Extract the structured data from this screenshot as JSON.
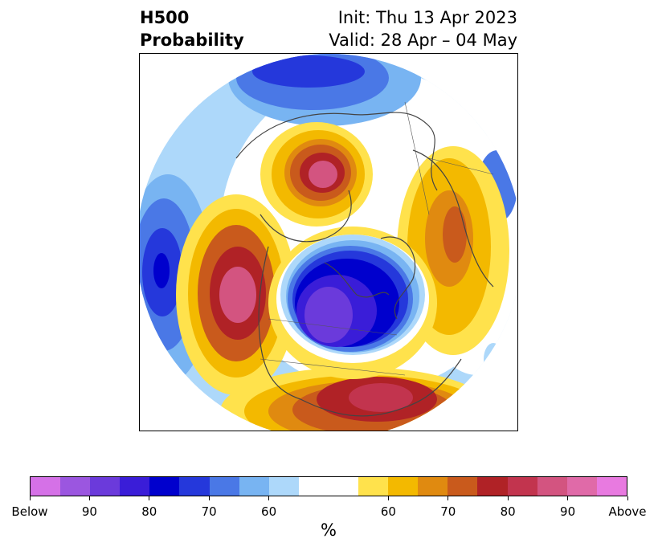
{
  "header": {
    "title_line1": "H500",
    "title_line2": "Probability",
    "init_text": "Init: Thu 13 Apr 2023",
    "valid_text": "Valid: 28 Apr – 04 May"
  },
  "colorbar": {
    "unit": "%",
    "segments": [
      {
        "key": "below-above100",
        "color": "#d571e7"
      },
      {
        "key": "below-95",
        "color": "#9b56e0"
      },
      {
        "key": "below-90",
        "color": "#6b3adb"
      },
      {
        "key": "below-85",
        "color": "#3a1dd8"
      },
      {
        "key": "below-80",
        "color": "#0000cd"
      },
      {
        "key": "below-75",
        "color": "#2538db"
      },
      {
        "key": "below-70",
        "color": "#4a78e6"
      },
      {
        "key": "below-65",
        "color": "#78b4f2"
      },
      {
        "key": "below-60",
        "color": "#add8fa"
      },
      {
        "key": "neutral",
        "color": "#ffffff"
      },
      {
        "key": "above-60",
        "color": "#ffe24c"
      },
      {
        "key": "above-65",
        "color": "#f3b900"
      },
      {
        "key": "above-70",
        "color": "#e08a10"
      },
      {
        "key": "above-75",
        "color": "#c95a1c"
      },
      {
        "key": "above-80",
        "color": "#b02226"
      },
      {
        "key": "above-85",
        "color": "#c2344e"
      },
      {
        "key": "above-90",
        "color": "#d35480"
      },
      {
        "key": "above-95",
        "color": "#e06aa8"
      },
      {
        "key": "above-100",
        "color": "#e87ae0"
      }
    ],
    "tick_labels": [
      "Below",
      "90",
      "80",
      "70",
      "60",
      "60",
      "70",
      "80",
      "90",
      "Above"
    ]
  }
}
